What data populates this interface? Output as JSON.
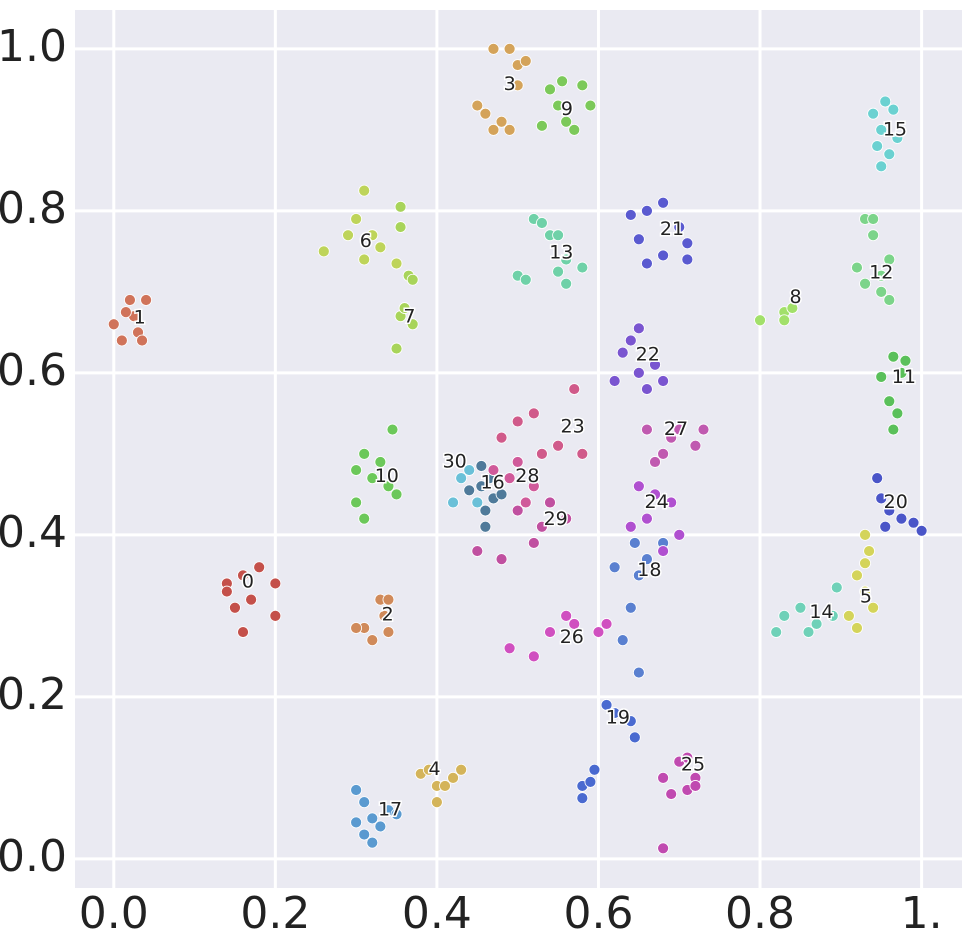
{
  "chart_data": {
    "type": "scatter",
    "xlim": [
      -0.048,
      1.05
    ],
    "ylim": [
      -0.036,
      1.048
    ],
    "xticks": [
      {
        "value": 0,
        "label": "0.0"
      },
      0.2,
      0.4,
      0.6,
      0.8,
      {
        "value": 1,
        "label": "1."
      }
    ],
    "yticks": [
      {
        "value": 0,
        "label": "0.0"
      },
      0.2,
      0.4,
      0.6,
      0.8,
      {
        "value": 1,
        "label": "1.0"
      }
    ],
    "grid": true,
    "series": [
      {
        "color": "#c4504a",
        "x": [
          0.14,
          0.16,
          0.18,
          0.2,
          0.15,
          0.17,
          0.16,
          0.2,
          0.14
        ],
        "values": [
          0.34,
          0.35,
          0.36,
          0.34,
          0.31,
          0.32,
          0.28,
          0.3,
          0.33
        ]
      },
      {
        "color": "#d0735a",
        "x": [
          0.0,
          0.02,
          0.03,
          0.01,
          0.04,
          0.025,
          0.035,
          0.015
        ],
        "values": [
          0.66,
          0.69,
          0.65,
          0.64,
          0.69,
          0.67,
          0.64,
          0.675
        ]
      },
      {
        "color": "#d08a5a",
        "x": [
          0.33,
          0.34,
          0.31,
          0.3,
          0.32,
          0.34,
          0.335
        ],
        "values": [
          0.32,
          0.32,
          0.285,
          0.285,
          0.27,
          0.28,
          0.3
        ]
      },
      {
        "color": "#d4a35a",
        "x": [
          0.47,
          0.49,
          0.5,
          0.51,
          0.5,
          0.45,
          0.46,
          0.47,
          0.48,
          0.49
        ],
        "values": [
          1.0,
          1.0,
          0.98,
          0.985,
          0.955,
          0.93,
          0.92,
          0.9,
          0.91,
          0.9
        ]
      },
      {
        "color": "#d4b45a",
        "x": [
          0.38,
          0.39,
          0.4,
          0.41,
          0.42,
          0.4,
          0.43
        ],
        "values": [
          0.105,
          0.11,
          0.09,
          0.09,
          0.1,
          0.07,
          0.11
        ]
      },
      {
        "color": "#d4d45a",
        "x": [
          0.93,
          0.935,
          0.92,
          0.93,
          0.91,
          0.92,
          0.94,
          0.93
        ],
        "values": [
          0.4,
          0.38,
          0.35,
          0.33,
          0.3,
          0.285,
          0.31,
          0.365
        ]
      },
      {
        "color": "#bed45a",
        "x": [
          0.26,
          0.29,
          0.3,
          0.32,
          0.31,
          0.33,
          0.35,
          0.31
        ],
        "values": [
          0.75,
          0.77,
          0.79,
          0.77,
          0.74,
          0.755,
          0.735,
          0.825
        ]
      },
      {
        "color": "#a8d45a",
        "x": [
          0.355,
          0.355,
          0.365,
          0.37,
          0.355,
          0.36,
          0.37,
          0.35
        ],
        "values": [
          0.805,
          0.78,
          0.72,
          0.715,
          0.67,
          0.68,
          0.66,
          0.63
        ]
      },
      {
        "color": "#a2e06a",
        "x": [
          0.8,
          0.83,
          0.84,
          0.83
        ],
        "values": [
          0.665,
          0.675,
          0.68,
          0.665
        ]
      },
      {
        "color": "#7cc95a",
        "x": [
          0.54,
          0.555,
          0.58,
          0.55,
          0.56,
          0.57,
          0.53,
          0.59
        ],
        "values": [
          0.95,
          0.96,
          0.955,
          0.93,
          0.91,
          0.9,
          0.905,
          0.93
        ]
      },
      {
        "color": "#6cc85a",
        "x": [
          0.3,
          0.31,
          0.32,
          0.33,
          0.34,
          0.35,
          0.3,
          0.31,
          0.345
        ],
        "values": [
          0.48,
          0.5,
          0.47,
          0.49,
          0.46,
          0.45,
          0.44,
          0.42,
          0.53
        ]
      },
      {
        "color": "#5ac05a",
        "x": [
          0.965,
          0.98,
          0.95,
          0.975,
          0.96,
          0.97,
          0.965
        ],
        "values": [
          0.62,
          0.615,
          0.595,
          0.6,
          0.565,
          0.55,
          0.53
        ]
      },
      {
        "color": "#7cd48a",
        "x": [
          0.93,
          0.94,
          0.94,
          0.92,
          0.93,
          0.95,
          0.96,
          0.95,
          0.96
        ],
        "values": [
          0.79,
          0.79,
          0.77,
          0.73,
          0.71,
          0.7,
          0.69,
          0.72,
          0.74
        ]
      },
      {
        "color": "#6fd1a8",
        "x": [
          0.52,
          0.53,
          0.54,
          0.55,
          0.56,
          0.5,
          0.51,
          0.55,
          0.56,
          0.58
        ],
        "values": [
          0.79,
          0.785,
          0.77,
          0.77,
          0.74,
          0.72,
          0.715,
          0.725,
          0.71,
          0.73
        ]
      },
      {
        "color": "#6fd1b8",
        "x": [
          0.83,
          0.85,
          0.87,
          0.89,
          0.86,
          0.82,
          0.895
        ],
        "values": [
          0.3,
          0.31,
          0.29,
          0.3,
          0.28,
          0.28,
          0.335
        ]
      },
      {
        "color": "#6bd1d1",
        "x": [
          0.94,
          0.955,
          0.965,
          0.95,
          0.97,
          0.96,
          0.945,
          0.95
        ],
        "values": [
          0.92,
          0.935,
          0.925,
          0.9,
          0.89,
          0.87,
          0.88,
          0.855
        ]
      },
      {
        "color": "#4f7a9a",
        "x": [
          0.44,
          0.455,
          0.47,
          0.48,
          0.46,
          0.465,
          0.455,
          0.46
        ],
        "values": [
          0.455,
          0.46,
          0.445,
          0.45,
          0.43,
          0.47,
          0.485,
          0.41
        ]
      },
      {
        "color": "#5a9ad0",
        "x": [
          0.3,
          0.31,
          0.32,
          0.33,
          0.3,
          0.31,
          0.32,
          0.34,
          0.35
        ],
        "values": [
          0.085,
          0.07,
          0.05,
          0.04,
          0.045,
          0.03,
          0.02,
          0.06,
          0.055
        ]
      },
      {
        "color": "#5a80d0",
        "x": [
          0.62,
          0.645,
          0.65,
          0.64,
          0.66,
          0.68,
          0.63,
          0.65
        ],
        "values": [
          0.36,
          0.39,
          0.35,
          0.31,
          0.37,
          0.39,
          0.27,
          0.23
        ]
      },
      {
        "color": "#4a6ad0",
        "x": [
          0.61,
          0.62,
          0.64,
          0.645,
          0.58,
          0.59,
          0.58,
          0.595
        ],
        "values": [
          0.19,
          0.18,
          0.17,
          0.15,
          0.09,
          0.095,
          0.075,
          0.11
        ]
      },
      {
        "color": "#4a55c8",
        "x": [
          0.945,
          0.95,
          0.96,
          0.975,
          0.99,
          1.0,
          0.955
        ],
        "values": [
          0.47,
          0.445,
          0.43,
          0.42,
          0.415,
          0.405,
          0.41
        ]
      },
      {
        "color": "#5a5ad0",
        "x": [
          0.64,
          0.66,
          0.68,
          0.7,
          0.71,
          0.71,
          0.65,
          0.68,
          0.66
        ],
        "values": [
          0.795,
          0.8,
          0.81,
          0.78,
          0.76,
          0.74,
          0.765,
          0.745,
          0.735
        ]
      },
      {
        "color": "#7a55d0",
        "x": [
          0.64,
          0.65,
          0.63,
          0.65,
          0.62,
          0.67,
          0.66,
          0.68
        ],
        "values": [
          0.64,
          0.655,
          0.625,
          0.6,
          0.59,
          0.61,
          0.58,
          0.59
        ]
      },
      {
        "color": "#d05a8a",
        "x": [
          0.48,
          0.5,
          0.53,
          0.55,
          0.57,
          0.52,
          0.58
        ],
        "values": [
          0.52,
          0.54,
          0.5,
          0.51,
          0.58,
          0.55,
          0.5
        ]
      },
      {
        "color": "#b050d0",
        "x": [
          0.65,
          0.67,
          0.66,
          0.69,
          0.7,
          0.64,
          0.68
        ],
        "values": [
          0.46,
          0.45,
          0.42,
          0.44,
          0.4,
          0.41,
          0.38
        ]
      },
      {
        "color": "#c04ab0",
        "x": [
          0.7,
          0.71,
          0.72,
          0.71,
          0.69,
          0.68,
          0.72,
          0.68
        ],
        "values": [
          0.12,
          0.125,
          0.1,
          0.085,
          0.08,
          0.1,
          0.09,
          0.013
        ]
      },
      {
        "color": "#d050c0",
        "x": [
          0.54,
          0.57,
          0.6,
          0.49,
          0.52,
          0.56,
          0.61
        ],
        "values": [
          0.28,
          0.29,
          0.28,
          0.26,
          0.25,
          0.3,
          0.29
        ]
      },
      {
        "color": "#c05ab0",
        "x": [
          0.66,
          0.69,
          0.7,
          0.73,
          0.67,
          0.72,
          0.68
        ],
        "values": [
          0.53,
          0.52,
          0.53,
          0.53,
          0.49,
          0.51,
          0.5
        ]
      },
      {
        "color": "#d05a9a",
        "x": [
          0.49,
          0.5,
          0.52,
          0.47,
          0.51
        ],
        "values": [
          0.47,
          0.49,
          0.46,
          0.48,
          0.44
        ]
      },
      {
        "color": "#c050a0",
        "x": [
          0.5,
          0.53,
          0.56,
          0.45,
          0.48,
          0.52,
          0.54
        ],
        "values": [
          0.43,
          0.41,
          0.42,
          0.38,
          0.37,
          0.39,
          0.44
        ]
      },
      {
        "color": "#6ac0d8",
        "x": [
          0.43,
          0.44,
          0.45,
          0.42
        ],
        "values": [
          0.47,
          0.48,
          0.44,
          0.44
        ]
      }
    ],
    "annotations": [
      {
        "text": "0",
        "x": 0.166,
        "y": 0.342
      },
      {
        "text": "1",
        "x": 0.032,
        "y": 0.668
      },
      {
        "text": "2",
        "x": 0.339,
        "y": 0.301
      },
      {
        "text": "3",
        "x": 0.49,
        "y": 0.956
      },
      {
        "text": "4",
        "x": 0.397,
        "y": 0.11
      },
      {
        "text": "5",
        "x": 0.931,
        "y": 0.323
      },
      {
        "text": "6",
        "x": 0.312,
        "y": 0.762
      },
      {
        "text": "7",
        "x": 0.366,
        "y": 0.669
      },
      {
        "text": "8",
        "x": 0.844,
        "y": 0.693
      },
      {
        "text": "9",
        "x": 0.561,
        "y": 0.925
      },
      {
        "text": "10",
        "x": 0.338,
        "y": 0.472
      },
      {
        "text": "11",
        "x": 0.978,
        "y": 0.594
      },
      {
        "text": "12",
        "x": 0.95,
        "y": 0.723
      },
      {
        "text": "13",
        "x": 0.554,
        "y": 0.748
      },
      {
        "text": "14",
        "x": 0.876,
        "y": 0.304
      },
      {
        "text": "15",
        "x": 0.967,
        "y": 0.9
      },
      {
        "text": "16",
        "x": 0.469,
        "y": 0.464
      },
      {
        "text": "17",
        "x": 0.342,
        "y": 0.06
      },
      {
        "text": "18",
        "x": 0.663,
        "y": 0.356
      },
      {
        "text": "19",
        "x": 0.624,
        "y": 0.174
      },
      {
        "text": "20",
        "x": 0.968,
        "y": 0.44
      },
      {
        "text": "21",
        "x": 0.691,
        "y": 0.777
      },
      {
        "text": "22",
        "x": 0.661,
        "y": 0.622
      },
      {
        "text": "23",
        "x": 0.568,
        "y": 0.533
      },
      {
        "text": "24",
        "x": 0.672,
        "y": 0.44
      },
      {
        "text": "25",
        "x": 0.717,
        "y": 0.116
      },
      {
        "text": "26",
        "x": 0.567,
        "y": 0.273
      },
      {
        "text": "27",
        "x": 0.696,
        "y": 0.53
      },
      {
        "text": "28",
        "x": 0.512,
        "y": 0.472
      },
      {
        "text": "29",
        "x": 0.547,
        "y": 0.419
      },
      {
        "text": "30",
        "x": 0.422,
        "y": 0.49
      }
    ]
  }
}
